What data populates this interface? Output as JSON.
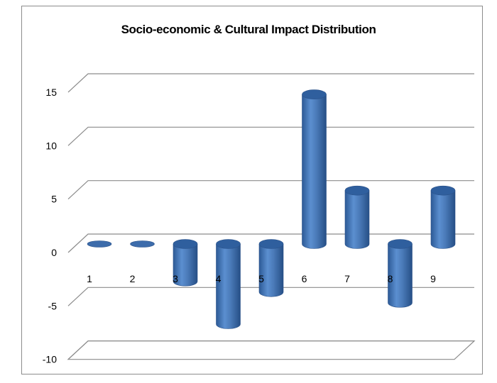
{
  "chart_data": {
    "type": "bar",
    "title": "Socio-economic & Cultural Impact Distribution",
    "categories": [
      "1",
      "2",
      "3",
      "4",
      "5",
      "6",
      "7",
      "8",
      "9"
    ],
    "values": [
      0,
      0,
      -3.5,
      -7.5,
      -4.5,
      14,
      5,
      -5.5,
      5
    ],
    "ylim": [
      -10,
      15
    ],
    "yticks": [
      "-10",
      "-5",
      "0",
      "5",
      "10",
      "15"
    ],
    "bar_shape": "cylinder",
    "grid": true,
    "legend": "none",
    "colors": {
      "bar_fill": "#4a7ab8",
      "bar_top": "#2f5f9e",
      "gridline": "#8c8c8c"
    }
  }
}
